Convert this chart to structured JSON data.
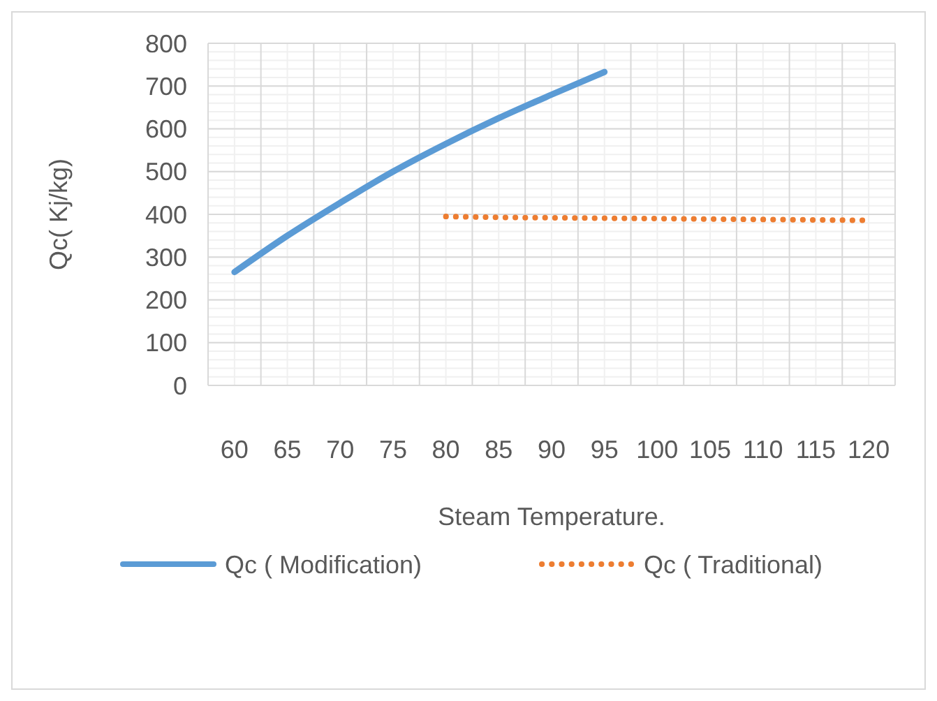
{
  "chart_data": {
    "type": "line",
    "xlabel": "Steam Temperature.",
    "ylabel": "Qc( Kj/kg)",
    "categories": [
      "60",
      "65",
      "70",
      "75",
      "80",
      "85",
      "90",
      "95",
      "100",
      "105",
      "110",
      "115",
      "120"
    ],
    "series": [
      {
        "name": "Qc ( Modification)",
        "color": "#5b9bd5",
        "line_style": "solid",
        "values": [
          265,
          350,
          427,
          500,
          565,
          625,
          680,
          733,
          null,
          null,
          null,
          null,
          null
        ]
      },
      {
        "name": "Qc ( Traditional)",
        "color": "#ed7d31",
        "line_style": "dotted",
        "values": [
          null,
          null,
          null,
          null,
          395,
          393,
          392,
          391,
          390,
          389,
          388,
          387,
          386
        ]
      }
    ],
    "ylim": [
      0,
      800
    ],
    "yticks": [
      0,
      100,
      200,
      300,
      400,
      500,
      600,
      700,
      800
    ],
    "grid": true,
    "legend": "bottom",
    "marker": "none"
  }
}
